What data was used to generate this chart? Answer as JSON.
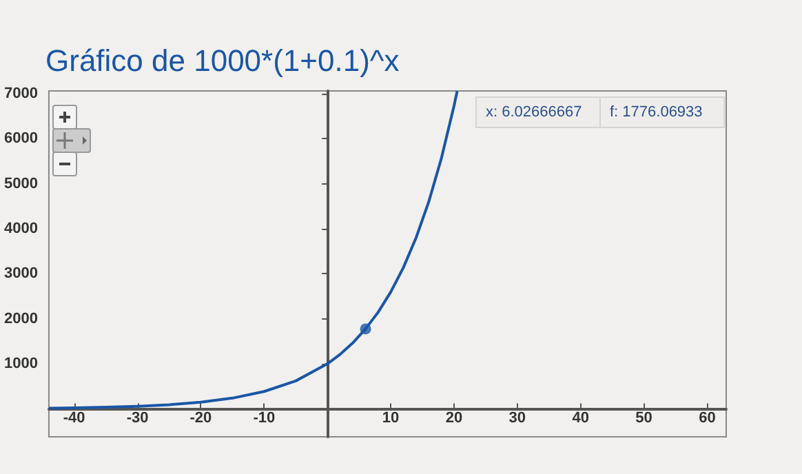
{
  "chart_data": {
    "type": "line",
    "title": "Gráfico de 1000*(1+0.1)^x",
    "x": [
      -44,
      -40,
      -35,
      -30,
      -25,
      -20,
      -15,
      -10,
      -5,
      0,
      2,
      4,
      6,
      8,
      10,
      12,
      14,
      16,
      18,
      20,
      20.5
    ],
    "series": [
      {
        "color": "#1b56a5",
        "values": [
          15,
          22,
          36,
          57,
          92,
          149,
          239,
          386,
          621,
          1000,
          1210,
          1464,
          1772,
          2144,
          2594,
          3138,
          3797,
          4595,
          5560,
          6727,
          7056
        ]
      },
      {
        "type": "scatter",
        "color": "#1b56a5",
        "marker": "circle",
        "x": [
          6.02666667
        ],
        "values": [
          1776.06933
        ]
      }
    ],
    "xlim": [
      -44,
      63
    ],
    "ylim": [
      -620,
      7060
    ],
    "xticks": [
      -40,
      -30,
      -20,
      -10,
      10,
      20,
      30,
      40,
      50,
      60
    ],
    "yticks": [
      1000,
      2000,
      3000,
      4000,
      5000,
      6000,
      7000
    ],
    "marker": "none",
    "annotations": [
      "x: 6.02666667",
      "f: 1776.06933"
    ]
  }
}
